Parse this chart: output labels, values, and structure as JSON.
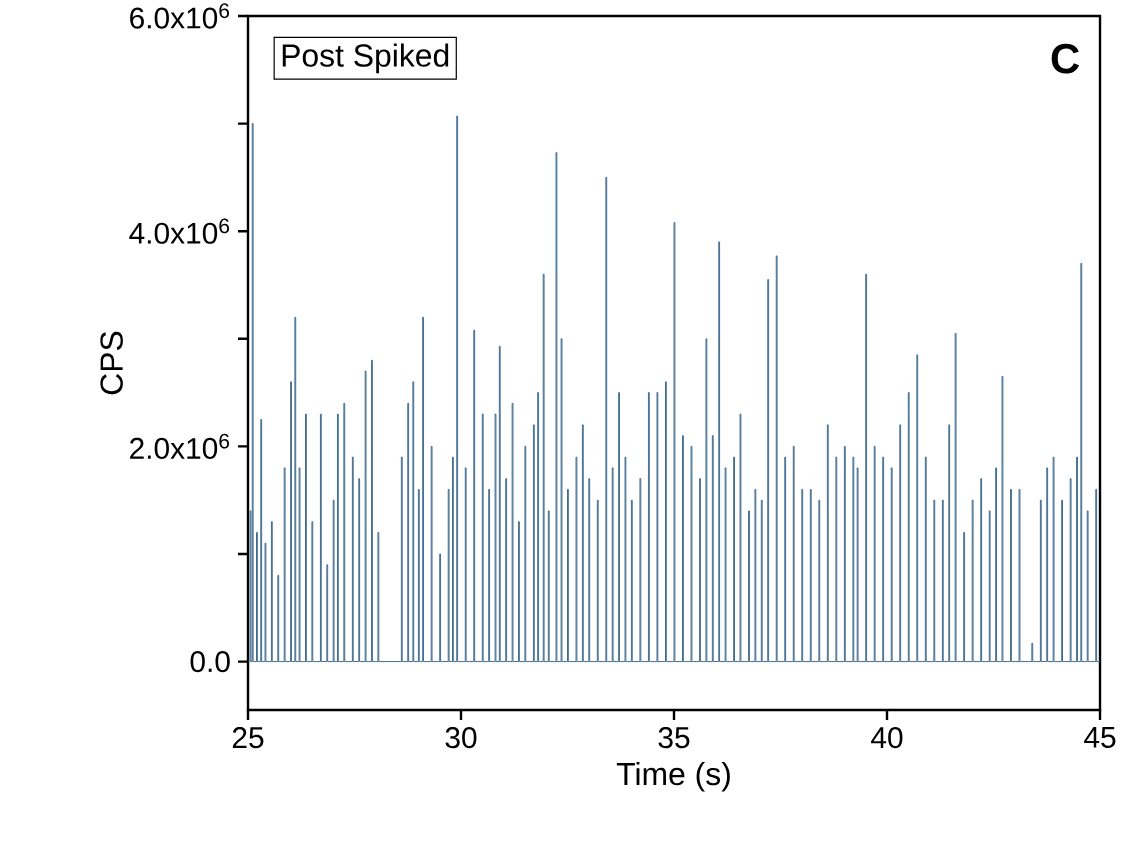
{
  "chart_data": {
    "type": "step",
    "xlabel": "Time (s)",
    "ylabel": "CPS",
    "annotations": [
      "Post Spiked",
      "C"
    ],
    "xlim": [
      25,
      45
    ],
    "xticks": [
      25,
      30,
      35,
      40,
      45
    ],
    "ylim": [
      -450000,
      6000000
    ],
    "yticks": [
      {
        "value": 0,
        "label": "0.0"
      },
      {
        "value": 1000000,
        "label": null
      },
      {
        "value": 2000000,
        "label": "2.0x10$^{6}$"
      },
      {
        "value": 3000000,
        "label": null
      },
      {
        "value": 4000000,
        "label": "4.0x10$^{6}$"
      },
      {
        "value": 5000000,
        "label": null
      },
      {
        "value": 6000000,
        "label": "6.0x10$^{6}$"
      }
    ],
    "series": [
      {
        "color": "#2f5f85",
        "x": [
          25.0,
          25.05,
          25.07,
          25.1,
          25.12,
          25.2,
          25.22,
          25.3,
          25.32,
          25.4,
          25.42,
          25.55,
          25.57,
          25.7,
          25.72,
          25.85,
          25.87,
          26.0,
          26.02,
          26.1,
          26.12,
          26.2,
          26.22,
          26.35,
          26.37,
          26.5,
          26.52,
          26.7,
          26.72,
          26.85,
          26.87,
          27.0,
          27.02,
          27.1,
          27.12,
          27.25,
          27.27,
          27.45,
          27.47,
          27.6,
          27.62,
          27.75,
          27.77,
          27.9,
          27.92,
          28.05,
          28.07,
          28.6,
          28.62,
          28.75,
          28.77,
          28.87,
          28.89,
          29.0,
          29.02,
          29.1,
          29.12,
          29.3,
          29.32,
          29.5,
          29.52,
          29.7,
          29.72,
          29.8,
          29.82,
          29.9,
          29.92,
          30.1,
          30.12,
          30.3,
          30.32,
          30.5,
          30.52,
          30.65,
          30.67,
          30.8,
          30.82,
          30.9,
          30.92,
          31.05,
          31.07,
          31.2,
          31.22,
          31.35,
          31.37,
          31.5,
          31.52,
          31.7,
          31.72,
          31.8,
          31.82,
          31.93,
          31.95,
          32.05,
          32.07,
          32.23,
          32.25,
          32.35,
          32.37,
          32.5,
          32.52,
          32.7,
          32.72,
          32.85,
          32.87,
          33.0,
          33.02,
          33.2,
          33.22,
          33.4,
          33.42,
          33.55,
          33.57,
          33.7,
          33.72,
          33.85,
          33.87,
          34.0,
          34.02,
          34.2,
          34.22,
          34.4,
          34.42,
          34.6,
          34.62,
          34.8,
          34.82,
          35.0,
          35.02,
          35.2,
          35.22,
          35.4,
          35.42,
          35.6,
          35.62,
          35.75,
          35.77,
          35.9,
          35.92,
          36.05,
          36.07,
          36.2,
          36.22,
          36.4,
          36.42,
          36.55,
          36.57,
          36.75,
          36.77,
          36.9,
          36.92,
          37.05,
          37.07,
          37.2,
          37.22,
          37.4,
          37.42,
          37.6,
          37.62,
          37.8,
          37.82,
          38.0,
          38.02,
          38.2,
          38.22,
          38.4,
          38.42,
          38.6,
          38.62,
          38.8,
          38.82,
          39.0,
          39.02,
          39.2,
          39.22,
          39.3,
          39.32,
          39.5,
          39.52,
          39.7,
          39.72,
          39.9,
          39.92,
          40.1,
          40.12,
          40.3,
          40.32,
          40.5,
          40.52,
          40.7,
          40.72,
          40.9,
          40.92,
          41.1,
          41.12,
          41.3,
          41.32,
          41.45,
          41.47,
          41.6,
          41.62,
          41.8,
          41.82,
          42.0,
          42.02,
          42.2,
          42.22,
          42.4,
          42.42,
          42.55,
          42.57,
          42.7,
          42.72,
          42.9,
          42.92,
          43.1,
          43.12,
          43.4,
          43.42,
          43.6,
          43.62,
          43.75,
          43.77,
          43.9,
          43.92,
          44.1,
          44.12,
          44.3,
          44.32,
          44.45,
          44.47,
          44.55,
          44.57,
          44.7,
          44.72,
          44.9,
          44.92,
          45.0
        ],
        "values": [
          0,
          1400000,
          0,
          5000000,
          0,
          1200000,
          0,
          2250000,
          0,
          1100000,
          0,
          1300000,
          0,
          800000,
          0,
          1800000,
          0,
          2600000,
          0,
          3200000,
          0,
          1800000,
          0,
          2300000,
          0,
          1300000,
          0,
          2300000,
          0,
          900000,
          0,
          1500000,
          0,
          2300000,
          0,
          2400000,
          0,
          1900000,
          0,
          1700000,
          0,
          2700000,
          0,
          2800000,
          0,
          1200000,
          0,
          1900000,
          0,
          2400000,
          0,
          2600000,
          0,
          1600000,
          0,
          3200000,
          0,
          2000000,
          0,
          1000000,
          0,
          1600000,
          0,
          1900000,
          0,
          5070000,
          0,
          1800000,
          0,
          3080000,
          0,
          2300000,
          0,
          1600000,
          0,
          2300000,
          0,
          2930000,
          0,
          1700000,
          0,
          2400000,
          0,
          1300000,
          0,
          2000000,
          0,
          2200000,
          0,
          2500000,
          0,
          3600000,
          0,
          1400000,
          0,
          4730000,
          0,
          3000000,
          0,
          1600000,
          0,
          1900000,
          0,
          2200000,
          0,
          1700000,
          0,
          1500000,
          0,
          4500000,
          0,
          1800000,
          0,
          2500000,
          0,
          1900000,
          0,
          1500000,
          0,
          1700000,
          0,
          2500000,
          0,
          2500000,
          0,
          2600000,
          0,
          4080000,
          0,
          2100000,
          0,
          2000000,
          0,
          1700000,
          0,
          3000000,
          0,
          2100000,
          0,
          3900000,
          0,
          1800000,
          0,
          1900000,
          0,
          2300000,
          0,
          1400000,
          0,
          1600000,
          0,
          1500000,
          0,
          3550000,
          0,
          3770000,
          0,
          1900000,
          0,
          2000000,
          0,
          1600000,
          0,
          1600000,
          0,
          1500000,
          0,
          2200000,
          0,
          1900000,
          0,
          2000000,
          0,
          1900000,
          0,
          1800000,
          0,
          3600000,
          0,
          2000000,
          0,
          1900000,
          0,
          1800000,
          0,
          2200000,
          0,
          2500000,
          0,
          2850000,
          0,
          1900000,
          0,
          1500000,
          0,
          1500000,
          0,
          2200000,
          0,
          3050000,
          0,
          1200000,
          0,
          1500000,
          0,
          1700000,
          0,
          1400000,
          0,
          1800000,
          0,
          2650000,
          0,
          1600000,
          0,
          1600000,
          0,
          170000,
          0,
          1500000,
          0,
          1800000,
          0,
          1900000,
          0,
          1500000,
          0,
          1700000,
          0,
          1900000,
          0,
          3700000,
          0,
          1400000,
          0,
          1600000,
          0,
          0
        ]
      }
    ]
  }
}
